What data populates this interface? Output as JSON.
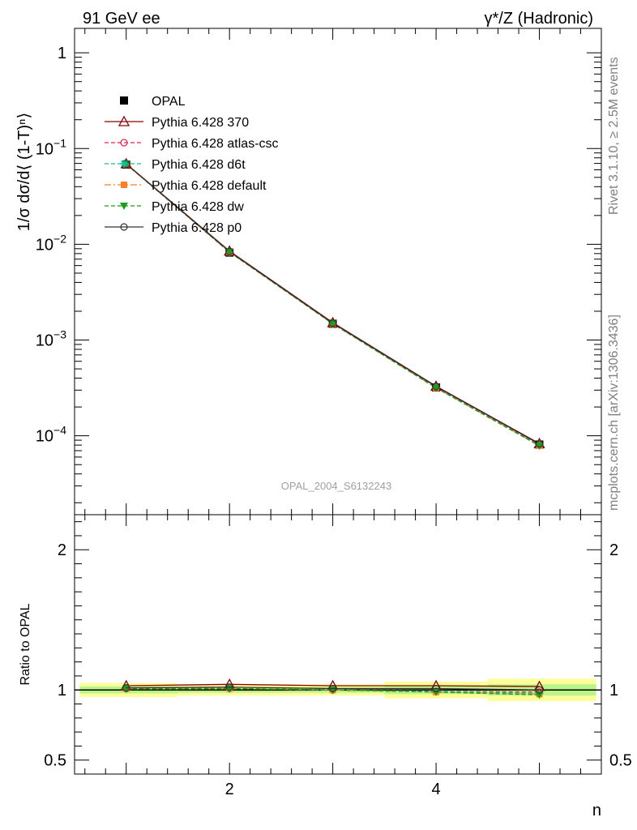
{
  "header": {
    "left": "91 GeV ee",
    "right": "γ*/Z (Hadronic)"
  },
  "side_text": {
    "rivet": "Rivet 3.1.10, ≥ 2.5M events",
    "mcplots": "mcplots.cern.ch [arXiv:1306.3436]"
  },
  "watermark": "OPAL_2004_S6132243",
  "chart_data": [
    {
      "type": "line",
      "title": "",
      "xlabel": "n",
      "ylabel": "1/σ dσ/d⟨ (1-T)ⁿ⟩",
      "yscale": "log",
      "xlim": [
        0.5,
        5.6
      ],
      "ylim": [
        1.5e-05,
        1.8
      ],
      "x": [
        1,
        2,
        3,
        4,
        5
      ],
      "y_ticks": [
        {
          "value": 1,
          "label": "1"
        },
        {
          "value": 0.1,
          "label": "10-1"
        },
        {
          "value": 0.01,
          "label": "10-2"
        },
        {
          "value": 0.001,
          "label": "10-3"
        },
        {
          "value": 0.0001,
          "label": "10-4"
        }
      ],
      "legend_position": "top-left",
      "data": {
        "name": "OPAL",
        "values": [
          0.068,
          0.0082,
          0.00148,
          0.00032,
          8.1e-05
        ]
      },
      "series": [
        {
          "name": "Pythia 6.428 370",
          "color": "#8b0000",
          "dash": "",
          "marker": "triangle-open",
          "values": [
            0.0695,
            0.0085,
            0.00152,
            0.00033,
            8.3e-05
          ]
        },
        {
          "name": "Pythia 6.428 atlas-csc",
          "color": "#e8234b",
          "dash": "5,3",
          "marker": "circle-open",
          "values": [
            0.0688,
            0.0083,
            0.00149,
            0.000322,
            8.1e-05
          ]
        },
        {
          "name": "Pythia 6.428 d6t",
          "color": "#00c8a0",
          "dash": "5,3",
          "marker": "star",
          "values": [
            0.0688,
            0.0083,
            0.00148,
            0.000318,
            7.95e-05
          ]
        },
        {
          "name": "Pythia 6.428 default",
          "color": "#ff7f24",
          "dash": "8,3,2,3",
          "marker": "square-filled",
          "values": [
            0.0688,
            0.0083,
            0.00148,
            0.000317,
            7.9e-05
          ]
        },
        {
          "name": "Pythia 6.428 dw",
          "color": "#1a9e1a",
          "dash": "5,3",
          "marker": "triangle-down-filled",
          "values": [
            0.0688,
            0.0083,
            0.00148,
            0.000316,
            7.85e-05
          ]
        },
        {
          "name": "Pythia 6.428 p0",
          "color": "#333333",
          "dash": "",
          "marker": "circle-open",
          "values": [
            0.069,
            0.0084,
            0.0015,
            0.000327,
            8.2e-05
          ]
        }
      ]
    },
    {
      "type": "line",
      "title": "",
      "xlabel": "n",
      "ylabel": "Ratio to OPAL",
      "xlim": [
        0.5,
        5.6
      ],
      "ylim": [
        0.4,
        2.25
      ],
      "x_ticks": [
        {
          "value": 2,
          "label": "2"
        },
        {
          "value": 4,
          "label": "4"
        }
      ],
      "y_ticks": [
        {
          "value": 0.5,
          "label": "0.5"
        },
        {
          "value": 1,
          "label": "1"
        },
        {
          "value": 2,
          "label": "2"
        }
      ],
      "band_outer": [
        0.05,
        0.04,
        0.04,
        0.06,
        0.08
      ],
      "band_inner": [
        0.025,
        0.02,
        0.02,
        0.03,
        0.04
      ],
      "x": [
        1,
        2,
        3,
        4,
        5
      ],
      "series": [
        {
          "name": "Pythia 6.428 370",
          "values": [
            1.03,
            1.04,
            1.03,
            1.03,
            1.025
          ]
        },
        {
          "name": "Pythia 6.428 atlas-csc",
          "values": [
            1.01,
            1.01,
            1.0,
            0.99,
            0.985
          ]
        },
        {
          "name": "Pythia 6.428 d6t",
          "values": [
            1.01,
            1.01,
            1.0,
            0.99,
            0.975
          ]
        },
        {
          "name": "Pythia 6.428 default",
          "values": [
            1.01,
            1.01,
            1.0,
            0.985,
            0.97
          ]
        },
        {
          "name": "Pythia 6.428 dw",
          "values": [
            1.01,
            1.01,
            1.0,
            0.985,
            0.965
          ]
        },
        {
          "name": "Pythia 6.428 p0",
          "values": [
            1.015,
            1.02,
            1.01,
            1.01,
            1.0
          ]
        }
      ]
    }
  ]
}
